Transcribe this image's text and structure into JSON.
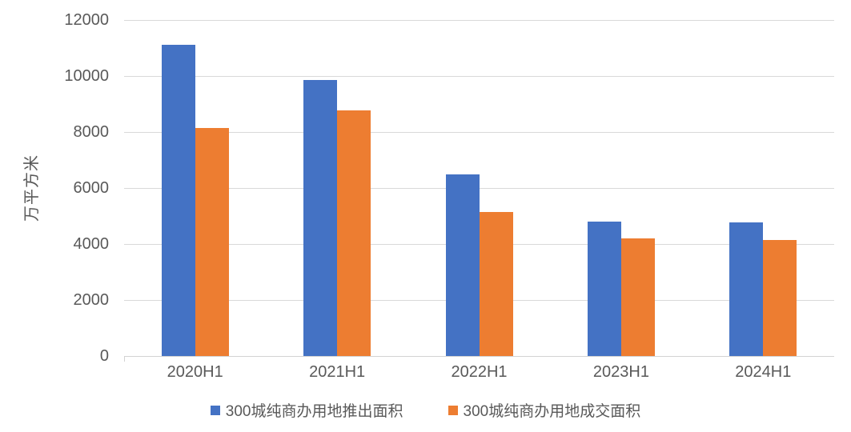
{
  "chart_data": {
    "type": "bar",
    "title": "",
    "xlabel": "",
    "ylabel": "万平方米",
    "categories": [
      "2020H1",
      "2021H1",
      "2022H1",
      "2023H1",
      "2024H1"
    ],
    "series": [
      {
        "name": "300城纯商办用地推出面积",
        "color": "#4472C4",
        "values": [
          11100,
          9850,
          6500,
          4800,
          4780
        ]
      },
      {
        "name": "300城纯商办用地成交面积",
        "color": "#ED7D31",
        "values": [
          8150,
          8780,
          5150,
          4200,
          4150
        ]
      }
    ],
    "ylim": [
      0,
      12000
    ],
    "yticks": [
      0,
      2000,
      4000,
      6000,
      8000,
      10000,
      12000
    ],
    "grid": true,
    "legend_position": "bottom",
    "colors": {
      "axis_text": "#595959",
      "gridline": "#d9d9d9",
      "background": "#ffffff"
    }
  }
}
